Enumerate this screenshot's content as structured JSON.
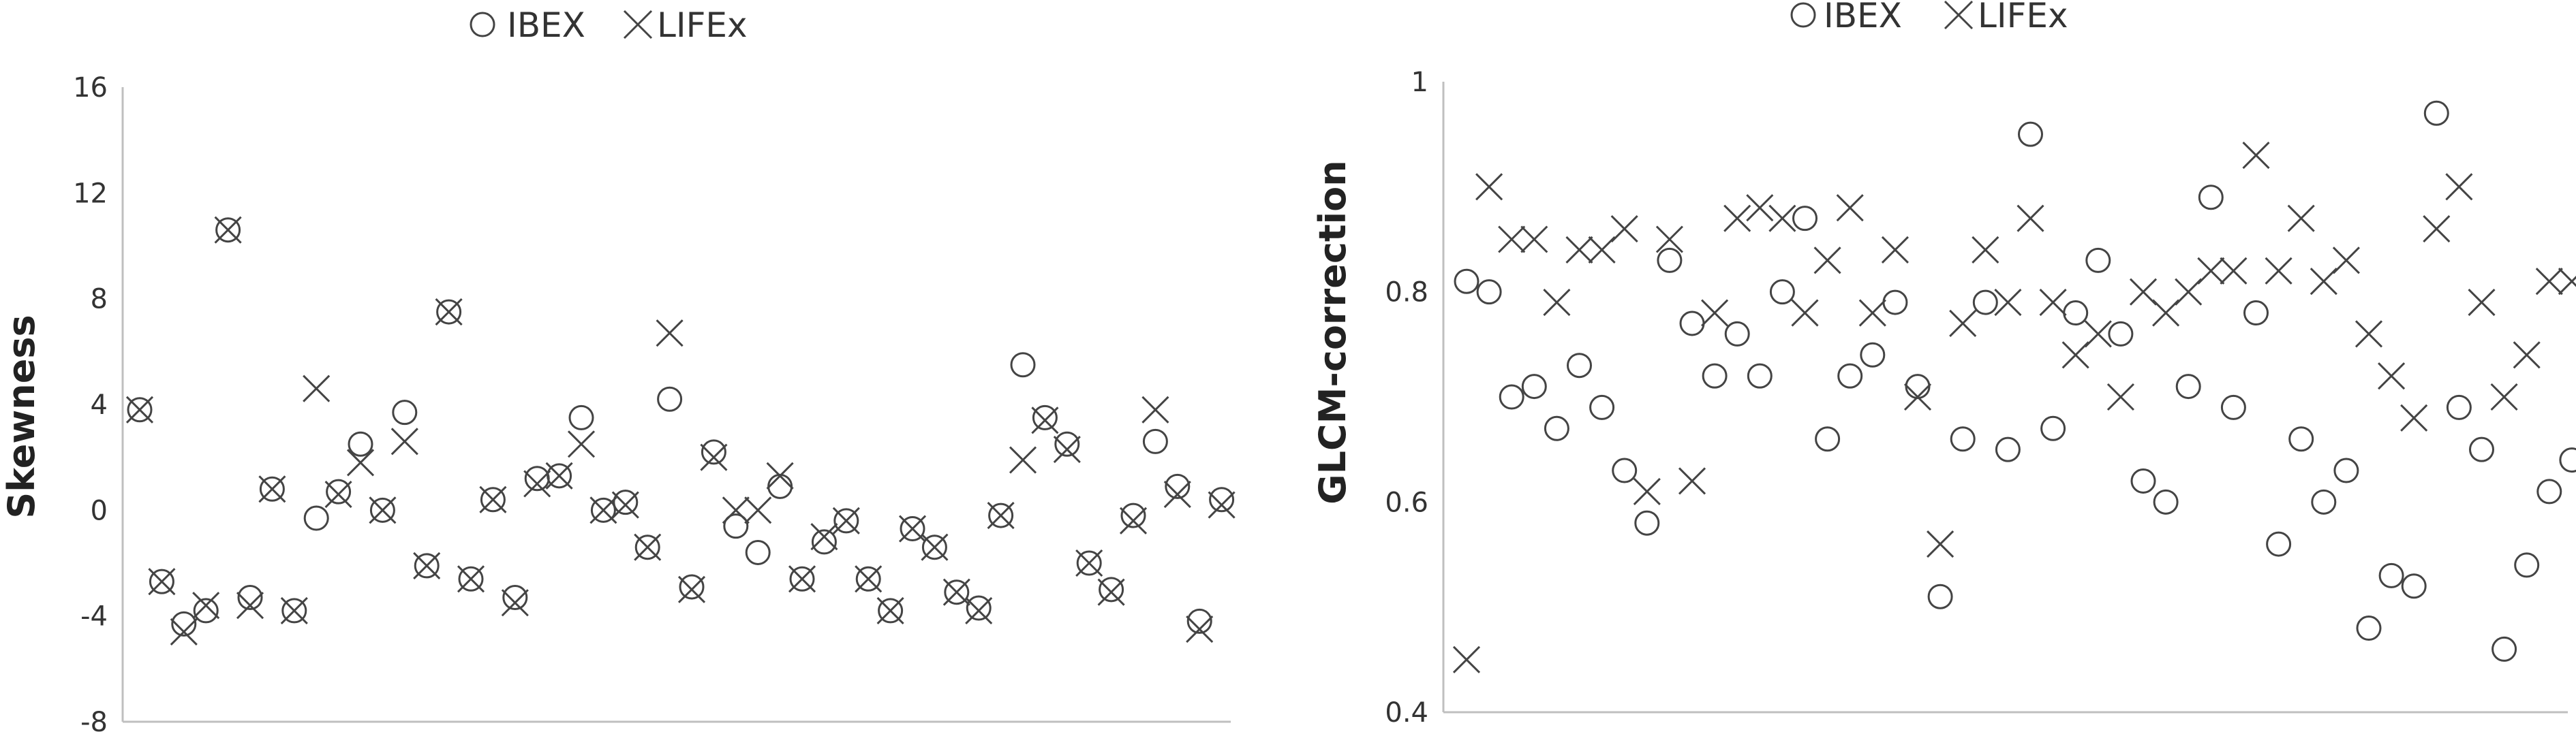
{
  "chart_data": [
    {
      "type": "scatter",
      "title": "",
      "xlabel": "",
      "ylabel": "Skewness",
      "ylim": [
        -8,
        16
      ],
      "yticks": [
        -8,
        -4,
        0,
        4,
        8,
        12,
        16
      ],
      "legend_position": "top-center",
      "grid": false,
      "series": [
        {
          "name": "IBEX",
          "marker": "circle",
          "values": [
            3.8,
            -2.7,
            -4.3,
            -3.8,
            10.6,
            -3.3,
            0.8,
            -3.8,
            -0.3,
            0.7,
            2.5,
            0.0,
            3.7,
            -2.1,
            7.5,
            -2.6,
            0.4,
            -3.3,
            1.2,
            1.3,
            3.5,
            0.0,
            0.3,
            -1.4,
            4.2,
            -2.9,
            2.2,
            -0.6,
            -1.6,
            0.9,
            -2.6,
            -1.2,
            -0.4,
            -2.6,
            -3.8,
            -0.7,
            -1.4,
            -3.1,
            -3.7,
            -0.2,
            5.5,
            3.5,
            2.5,
            -2.0,
            -3.0,
            -0.2,
            2.6,
            0.9,
            -4.2,
            0.4
          ]
        },
        {
          "name": "LIFEx",
          "marker": "x",
          "values": [
            3.8,
            -2.7,
            -4.6,
            -3.6,
            10.6,
            -3.6,
            0.8,
            -3.8,
            4.6,
            0.6,
            1.8,
            0.0,
            2.6,
            -2.1,
            7.5,
            -2.6,
            0.4,
            -3.5,
            1.0,
            1.3,
            2.5,
            0.0,
            0.2,
            -1.4,
            6.7,
            -3.0,
            2.0,
            0.0,
            0.0,
            1.3,
            -2.6,
            -1.0,
            -0.4,
            -2.6,
            -3.8,
            -0.7,
            -1.4,
            -3.1,
            -3.8,
            -0.2,
            1.9,
            3.4,
            2.3,
            -2.0,
            -3.1,
            -0.4,
            3.8,
            0.6,
            -4.5,
            0.2
          ]
        }
      ]
    },
    {
      "type": "scatter",
      "title": "",
      "xlabel": "",
      "ylabel": "GLCM-correction",
      "ylim": [
        0.4,
        1.0
      ],
      "yticks": [
        0.4,
        0.6,
        0.8,
        1.0
      ],
      "ytick_labels": [
        "0.4",
        "0.6",
        "0.8",
        "1"
      ],
      "legend_position": "top-center",
      "grid": false,
      "series": [
        {
          "name": "IBEX",
          "marker": "circle",
          "values": [
            0.81,
            0.8,
            0.7,
            0.71,
            0.67,
            0.73,
            0.69,
            0.63,
            0.58,
            0.83,
            0.77,
            0.72,
            0.76,
            0.72,
            0.8,
            0.87,
            0.66,
            0.72,
            0.74,
            0.79,
            0.71,
            0.51,
            0.66,
            0.79,
            0.65,
            0.95,
            0.67,
            0.78,
            0.83,
            0.76,
            0.62,
            0.6,
            0.71,
            0.89,
            0.69,
            0.78,
            0.56,
            0.66,
            0.6,
            0.63,
            0.48,
            0.53,
            0.52,
            0.97,
            0.69,
            0.65,
            0.46,
            0.54,
            0.61,
            0.64
          ]
        },
        {
          "name": "LIFEx",
          "marker": "x",
          "values": [
            0.45,
            0.9,
            0.85,
            0.85,
            0.79,
            0.84,
            0.84,
            0.86,
            0.61,
            0.85,
            0.62,
            0.78,
            0.87,
            0.88,
            0.87,
            0.78,
            0.83,
            0.88,
            0.78,
            0.84,
            0.7,
            0.56,
            0.77,
            0.84,
            0.79,
            0.87,
            0.79,
            0.74,
            0.76,
            0.7,
            0.8,
            0.78,
            0.8,
            0.82,
            0.82,
            0.93,
            0.82,
            0.87,
            0.81,
            0.83,
            0.76,
            0.72,
            0.68,
            0.86,
            0.9,
            0.79,
            0.7,
            0.74,
            0.81,
            0.81
          ]
        }
      ]
    }
  ]
}
